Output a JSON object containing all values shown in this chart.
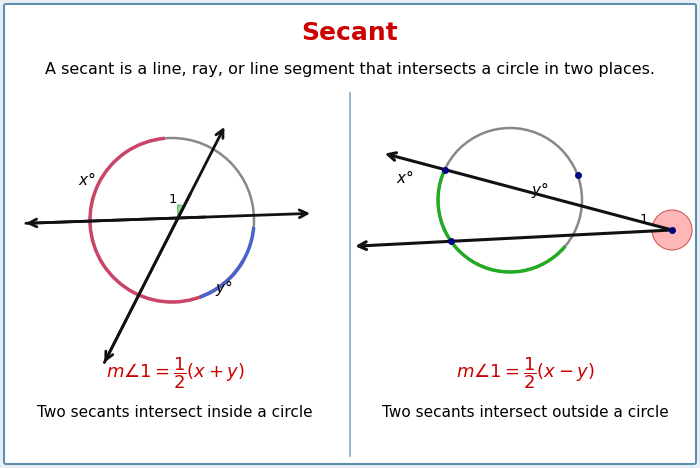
{
  "title": "Secant",
  "title_color": "#CC0000",
  "title_fontsize": 18,
  "subtitle": "A secant is a line, ray, or line segment that intersects a circle in two places.",
  "subtitle_fontsize": 11.5,
  "bg_color": "#e8eef4",
  "border_color": "#6090b0",
  "divider_color": "#80a8c8",
  "formula_left": "$m\\angle 1=\\dfrac{1}{2}(x+y)$",
  "formula_right": "$m\\angle 1=\\dfrac{1}{2}(x-y)$",
  "formula_color": "#CC0000",
  "formula_fontsize": 13,
  "caption_left": "Two secants intersect inside a circle",
  "caption_right": "Two secants intersect outside a circle",
  "caption_fontsize": 11,
  "circle_color": "#888888",
  "arrow_color": "#111111",
  "arc_red": "#cc4466",
  "arc_blue": "#4466cc",
  "arc_green": "#22aa22",
  "wedge_green": "#88cc88",
  "wedge_pink": "#ffaaaa",
  "dot_color": "#000080"
}
